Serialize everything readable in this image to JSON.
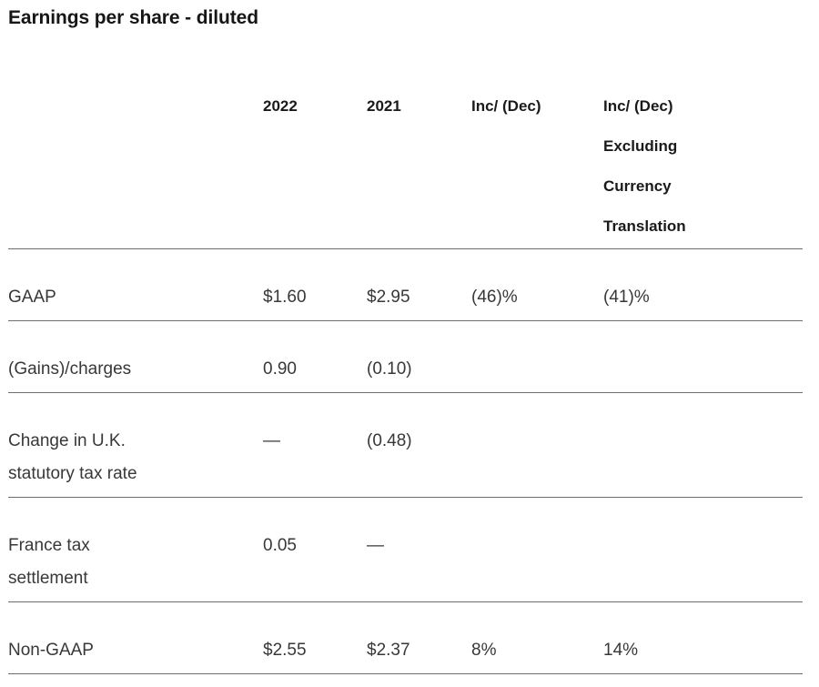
{
  "page": {
    "title": "Earnings per share - diluted"
  },
  "colors": {
    "heading_text": "#1a1a1a",
    "body_text": "#383838",
    "rule": "#6e6e6e",
    "background": "#ffffff"
  },
  "table": {
    "header": {
      "label": "",
      "y2022": "2022",
      "y2021": "2021",
      "inc_dec": "Inc/ (Dec)",
      "inc_dec_fx": [
        "Inc/ (Dec)",
        "Excluding",
        "Currency",
        "Translation"
      ]
    },
    "rows": [
      {
        "label": [
          "GAAP"
        ],
        "y2022": "$1.60",
        "y2021": "$2.95",
        "inc_dec": "(46)%",
        "inc_dec_fx": "(41)%"
      },
      {
        "label": [
          "(Gains)/charges"
        ],
        "y2022": "0.90",
        "y2021": "(0.10)",
        "inc_dec": "",
        "inc_dec_fx": ""
      },
      {
        "label": [
          "Change in U.K.",
          "statutory tax rate"
        ],
        "y2022": "—",
        "y2021": "(0.48)",
        "inc_dec": "",
        "inc_dec_fx": ""
      },
      {
        "label": [
          "France tax",
          "settlement"
        ],
        "y2022": "0.05",
        "y2021": "—",
        "inc_dec": "",
        "inc_dec_fx": ""
      },
      {
        "label": [
          "Non-GAAP"
        ],
        "y2022": "$2.55",
        "y2021": "$2.37",
        "inc_dec": "8%",
        "inc_dec_fx": "14%"
      }
    ]
  }
}
